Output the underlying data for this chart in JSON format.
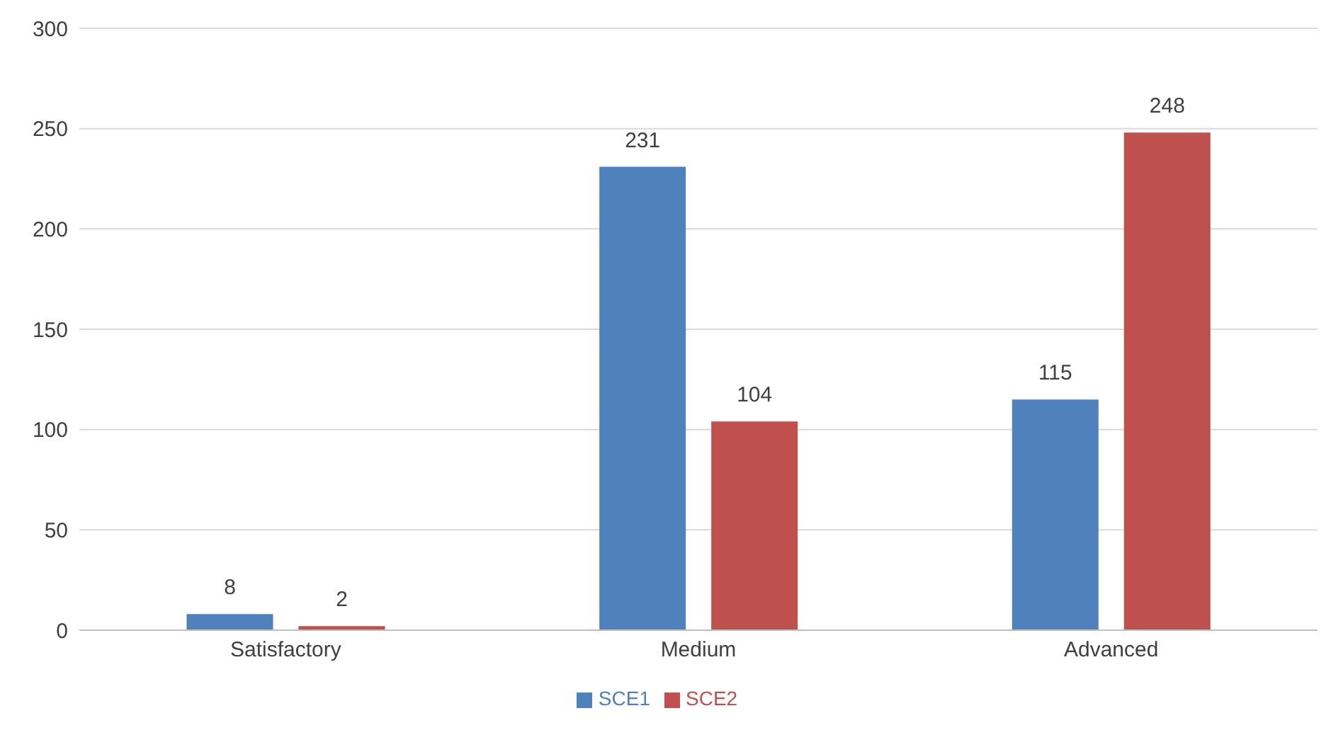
{
  "chart_data": {
    "type": "bar",
    "categories": [
      "Satisfactory",
      "Medium",
      "Advanced"
    ],
    "series": [
      {
        "name": "SCE1",
        "color": "#4f81bd",
        "values": [
          8,
          231,
          115
        ]
      },
      {
        "name": "SCE2",
        "color": "#c0504d",
        "values": [
          2,
          104,
          248
        ]
      }
    ],
    "ylim": [
      0,
      300
    ],
    "yticks": [
      0,
      50,
      100,
      150,
      200,
      250,
      300
    ],
    "grid": "y",
    "legend": "bottom",
    "data_labels": true
  }
}
